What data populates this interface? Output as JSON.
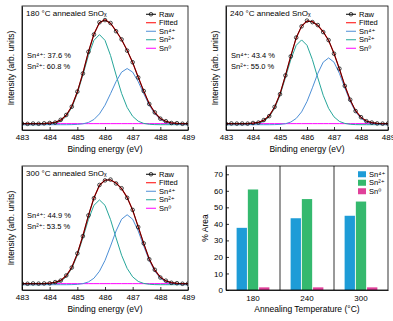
{
  "chart_data": [
    {
      "type": "line",
      "title": "180 °C annealed SnOₓ",
      "x_label": "Binding energy (eV)",
      "y_label": "Intensity (arb. units)",
      "xlim": [
        483,
        489
      ],
      "xticks": [
        483,
        484,
        485,
        486,
        487,
        488,
        489
      ],
      "ylim": [
        -0.05,
        1.12
      ],
      "tick_labels": "x",
      "legend": "top-right",
      "annotations": [
        "Sn⁴⁺: 37.6 %",
        "Sn²⁺: 60.8 %"
      ],
      "x": [
        483,
        483.2,
        483.4,
        483.6,
        483.8,
        484,
        484.2,
        484.4,
        484.6,
        484.8,
        485,
        485.2,
        485.4,
        485.6,
        485.8,
        486,
        486.2,
        486.4,
        486.6,
        486.8,
        487,
        487.2,
        487.4,
        487.6,
        487.8,
        488,
        488.2,
        488.4,
        488.6,
        488.8,
        489
      ],
      "series": [
        {
          "name": "Raw",
          "color": "#000000",
          "marker": "circle",
          "line_style": "solid",
          "values": [
            0.012,
            0.008,
            0.011,
            0.009,
            0.013,
            0.016,
            0.02,
            0.046,
            0.092,
            0.17,
            0.312,
            0.483,
            0.688,
            0.851,
            0.966,
            0.987,
            0.959,
            0.882,
            0.805,
            0.699,
            0.589,
            0.446,
            0.318,
            0.195,
            0.116,
            0.057,
            0.033,
            0.016,
            0.014,
            0.009,
            0.011
          ]
        },
        {
          "name": "Fitted",
          "color": "#ff0000",
          "line_style": "solid",
          "values": [
            0.01,
            0.01,
            0.01,
            0.01,
            0.011,
            0.014,
            0.022,
            0.043,
            0.089,
            0.174,
            0.308,
            0.487,
            0.684,
            0.855,
            0.962,
            0.99,
            0.956,
            0.886,
            0.801,
            0.703,
            0.585,
            0.45,
            0.315,
            0.198,
            0.113,
            0.059,
            0.031,
            0.018,
            0.013,
            0.011,
            0.01
          ]
        },
        {
          "name": "Sn⁴⁺",
          "color": "#4d8fd6",
          "line_style": "solid",
          "values": [
            0,
            0,
            0,
            0,
            0,
            0,
            0,
            0,
            0,
            0.001,
            0.003,
            0.008,
            0.021,
            0.049,
            0.102,
            0.184,
            0.293,
            0.407,
            0.496,
            0.53,
            0.496,
            0.407,
            0.293,
            0.184,
            0.102,
            0.049,
            0.021,
            0.008,
            0.003,
            0.001,
            0
          ]
        },
        {
          "name": "Sn²⁺",
          "color": "#26a69a",
          "line_style": "solid",
          "values": [
            0,
            0,
            0,
            0,
            0.001,
            0.004,
            0.012,
            0.033,
            0.079,
            0.163,
            0.295,
            0.469,
            0.653,
            0.796,
            0.85,
            0.796,
            0.653,
            0.469,
            0.295,
            0.163,
            0.079,
            0.033,
            0.012,
            0.004,
            0.001,
            0,
            0,
            0,
            0,
            0,
            0
          ]
        },
        {
          "name": "Sn⁰",
          "color": "#ff00ff",
          "line_style": "solid",
          "values": [
            0.01,
            0.01,
            0.01,
            0.01,
            0.01,
            0.01,
            0.01,
            0.01,
            0.01,
            0.01,
            0.01,
            0.01,
            0.01,
            0.01,
            0.01,
            0.01,
            0.01,
            0.01,
            0.01,
            0.01,
            0.01,
            0.01,
            0.01,
            0.01,
            0.01,
            0.01,
            0.01,
            0.01,
            0.01,
            0.01,
            0.01
          ]
        }
      ]
    },
    {
      "type": "line",
      "title": "240 °C annealed SnOₓ",
      "x_label": "Binding energy (eV)",
      "y_label": "Intensity (arb. units)",
      "xlim": [
        483,
        489
      ],
      "xticks": [
        483,
        484,
        485,
        486,
        487,
        488,
        489
      ],
      "ylim": [
        -0.05,
        1.12
      ],
      "tick_labels": "x",
      "legend": "top-right",
      "annotations": [
        "Sn⁴⁺: 43.4 %",
        "Sn²⁺: 55.0 %"
      ],
      "x": [
        483,
        483.2,
        483.4,
        483.6,
        483.8,
        484,
        484.2,
        484.4,
        484.6,
        484.8,
        485,
        485.2,
        485.4,
        485.6,
        485.8,
        486,
        486.2,
        486.4,
        486.6,
        486.8,
        487,
        487.2,
        487.4,
        487.6,
        487.8,
        488,
        488.2,
        488.4,
        488.6,
        488.8,
        489
      ],
      "series": [
        {
          "name": "Raw",
          "color": "#000000",
          "marker": "circle",
          "line_style": "solid",
          "values": [
            0.009,
            0.012,
            0.01,
            0.011,
            0.01,
            0.016,
            0.02,
            0.044,
            0.081,
            0.168,
            0.288,
            0.465,
            0.645,
            0.822,
            0.928,
            0.982,
            0.968,
            0.94,
            0.874,
            0.798,
            0.67,
            0.529,
            0.366,
            0.236,
            0.129,
            0.071,
            0.033,
            0.02,
            0.012,
            0.01,
            0.011
          ]
        },
        {
          "name": "Fitted",
          "color": "#ff0000",
          "line_style": "solid",
          "values": [
            0.01,
            0.01,
            0.01,
            0.01,
            0.011,
            0.014,
            0.022,
            0.041,
            0.084,
            0.165,
            0.291,
            0.461,
            0.649,
            0.818,
            0.931,
            0.978,
            0.972,
            0.936,
            0.878,
            0.794,
            0.674,
            0.525,
            0.37,
            0.233,
            0.132,
            0.069,
            0.035,
            0.019,
            0.013,
            0.011,
            0.01
          ]
        },
        {
          "name": "Sn⁴⁺",
          "color": "#4d8fd6",
          "line_style": "solid",
          "values": [
            0,
            0,
            0,
            0,
            0,
            0,
            0,
            0,
            0,
            0.001,
            0.003,
            0.009,
            0.025,
            0.059,
            0.121,
            0.219,
            0.348,
            0.484,
            0.59,
            0.63,
            0.59,
            0.484,
            0.348,
            0.219,
            0.121,
            0.059,
            0.025,
            0.009,
            0.003,
            0.001,
            0
          ]
        },
        {
          "name": "Sn²⁺",
          "color": "#26a69a",
          "line_style": "solid",
          "values": [
            0,
            0,
            0,
            0,
            0.001,
            0.004,
            0.012,
            0.031,
            0.074,
            0.154,
            0.278,
            0.442,
            0.614,
            0.749,
            0.8,
            0.749,
            0.614,
            0.442,
            0.278,
            0.154,
            0.074,
            0.031,
            0.012,
            0.004,
            0.001,
            0,
            0,
            0,
            0,
            0,
            0
          ]
        },
        {
          "name": "Sn⁰",
          "color": "#ff00ff",
          "line_style": "solid",
          "values": [
            0.01,
            0.01,
            0.01,
            0.01,
            0.01,
            0.01,
            0.01,
            0.01,
            0.01,
            0.01,
            0.01,
            0.01,
            0.01,
            0.01,
            0.01,
            0.01,
            0.01,
            0.01,
            0.01,
            0.01,
            0.01,
            0.01,
            0.01,
            0.01,
            0.01,
            0.01,
            0.01,
            0.01,
            0.01,
            0.01,
            0.01
          ]
        }
      ]
    },
    {
      "type": "line",
      "title": "300 °C annealed SnOₓ",
      "x_label": "Binding energy (eV)",
      "y_label": "Intensity (arb. units)",
      "xlim": [
        483,
        489
      ],
      "xticks": [
        483,
        484,
        485,
        486,
        487,
        488,
        489
      ],
      "ylim": [
        -0.05,
        1.12
      ],
      "tick_labels": "x",
      "legend": "top-right",
      "annotations": [
        "Sn⁴⁺: 44.9 %",
        "Sn²⁺: 53.5 %"
      ],
      "x": [
        483,
        483.2,
        483.4,
        483.6,
        483.8,
        484,
        484.2,
        484.4,
        484.6,
        484.8,
        485,
        485.2,
        485.4,
        485.6,
        485.8,
        486,
        486.2,
        486.4,
        486.6,
        486.8,
        487,
        487.2,
        487.4,
        487.6,
        487.8,
        488,
        488.2,
        488.4,
        488.6,
        488.8,
        489
      ],
      "series": [
        {
          "name": "Raw",
          "color": "#000000",
          "marker": "circle",
          "line_style": "solid",
          "values": [
            0.011,
            0.009,
            0.012,
            0.01,
            0.012,
            0.013,
            0.024,
            0.039,
            0.087,
            0.162,
            0.295,
            0.458,
            0.654,
            0.816,
            0.941,
            0.984,
            0.992,
            0.955,
            0.91,
            0.82,
            0.706,
            0.544,
            0.39,
            0.24,
            0.141,
            0.068,
            0.038,
            0.018,
            0.014,
            0.009,
            0.01
          ]
        },
        {
          "name": "Fitted",
          "color": "#ff0000",
          "line_style": "solid",
          "values": [
            0.01,
            0.01,
            0.01,
            0.01,
            0.011,
            0.014,
            0.022,
            0.041,
            0.084,
            0.165,
            0.291,
            0.462,
            0.65,
            0.82,
            0.937,
            0.988,
            0.988,
            0.959,
            0.906,
            0.824,
            0.702,
            0.548,
            0.386,
            0.243,
            0.138,
            0.071,
            0.036,
            0.02,
            0.013,
            0.011,
            0.01
          ]
        },
        {
          "name": "Sn⁴⁺",
          "color": "#4d8fd6",
          "line_style": "solid",
          "values": [
            0,
            0,
            0,
            0,
            0,
            0,
            0,
            0,
            0,
            0.001,
            0.003,
            0.01,
            0.026,
            0.061,
            0.127,
            0.229,
            0.364,
            0.507,
            0.618,
            0.66,
            0.618,
            0.507,
            0.364,
            0.229,
            0.127,
            0.061,
            0.026,
            0.01,
            0.003,
            0.001,
            0
          ]
        },
        {
          "name": "Sn²⁺",
          "color": "#26a69a",
          "line_style": "solid",
          "values": [
            0,
            0,
            0,
            0,
            0.001,
            0.004,
            0.012,
            0.031,
            0.074,
            0.154,
            0.278,
            0.442,
            0.614,
            0.749,
            0.8,
            0.749,
            0.614,
            0.442,
            0.278,
            0.154,
            0.074,
            0.031,
            0.012,
            0.004,
            0.001,
            0,
            0,
            0,
            0,
            0,
            0
          ]
        },
        {
          "name": "Sn⁰",
          "color": "#ff00ff",
          "line_style": "solid",
          "values": [
            0.01,
            0.01,
            0.01,
            0.01,
            0.01,
            0.01,
            0.01,
            0.01,
            0.01,
            0.01,
            0.01,
            0.01,
            0.01,
            0.01,
            0.01,
            0.01,
            0.01,
            0.01,
            0.01,
            0.01,
            0.01,
            0.01,
            0.01,
            0.01,
            0.01,
            0.01,
            0.01,
            0.01,
            0.01,
            0.01,
            0.01
          ]
        }
      ]
    },
    {
      "type": "bar",
      "x_label": "Annealing Temperature (°C)",
      "y_label": "% Area",
      "categories": [
        "180",
        "240",
        "300"
      ],
      "ylim": [
        0,
        75
      ],
      "yticks": [
        0,
        10,
        20,
        30,
        40,
        50,
        60,
        70
      ],
      "grid": false,
      "legend": "top-right",
      "series": [
        {
          "name": "Sn⁴⁺",
          "color": "#1e9cd7",
          "values": [
            37.6,
            43.4,
            44.9
          ]
        },
        {
          "name": "Sn²⁺",
          "color": "#35b96e",
          "values": [
            60.8,
            55.0,
            53.5
          ]
        },
        {
          "name": "Sn⁰",
          "color": "#e0409a",
          "values": [
            1.6,
            1.6,
            1.6
          ]
        }
      ]
    }
  ]
}
